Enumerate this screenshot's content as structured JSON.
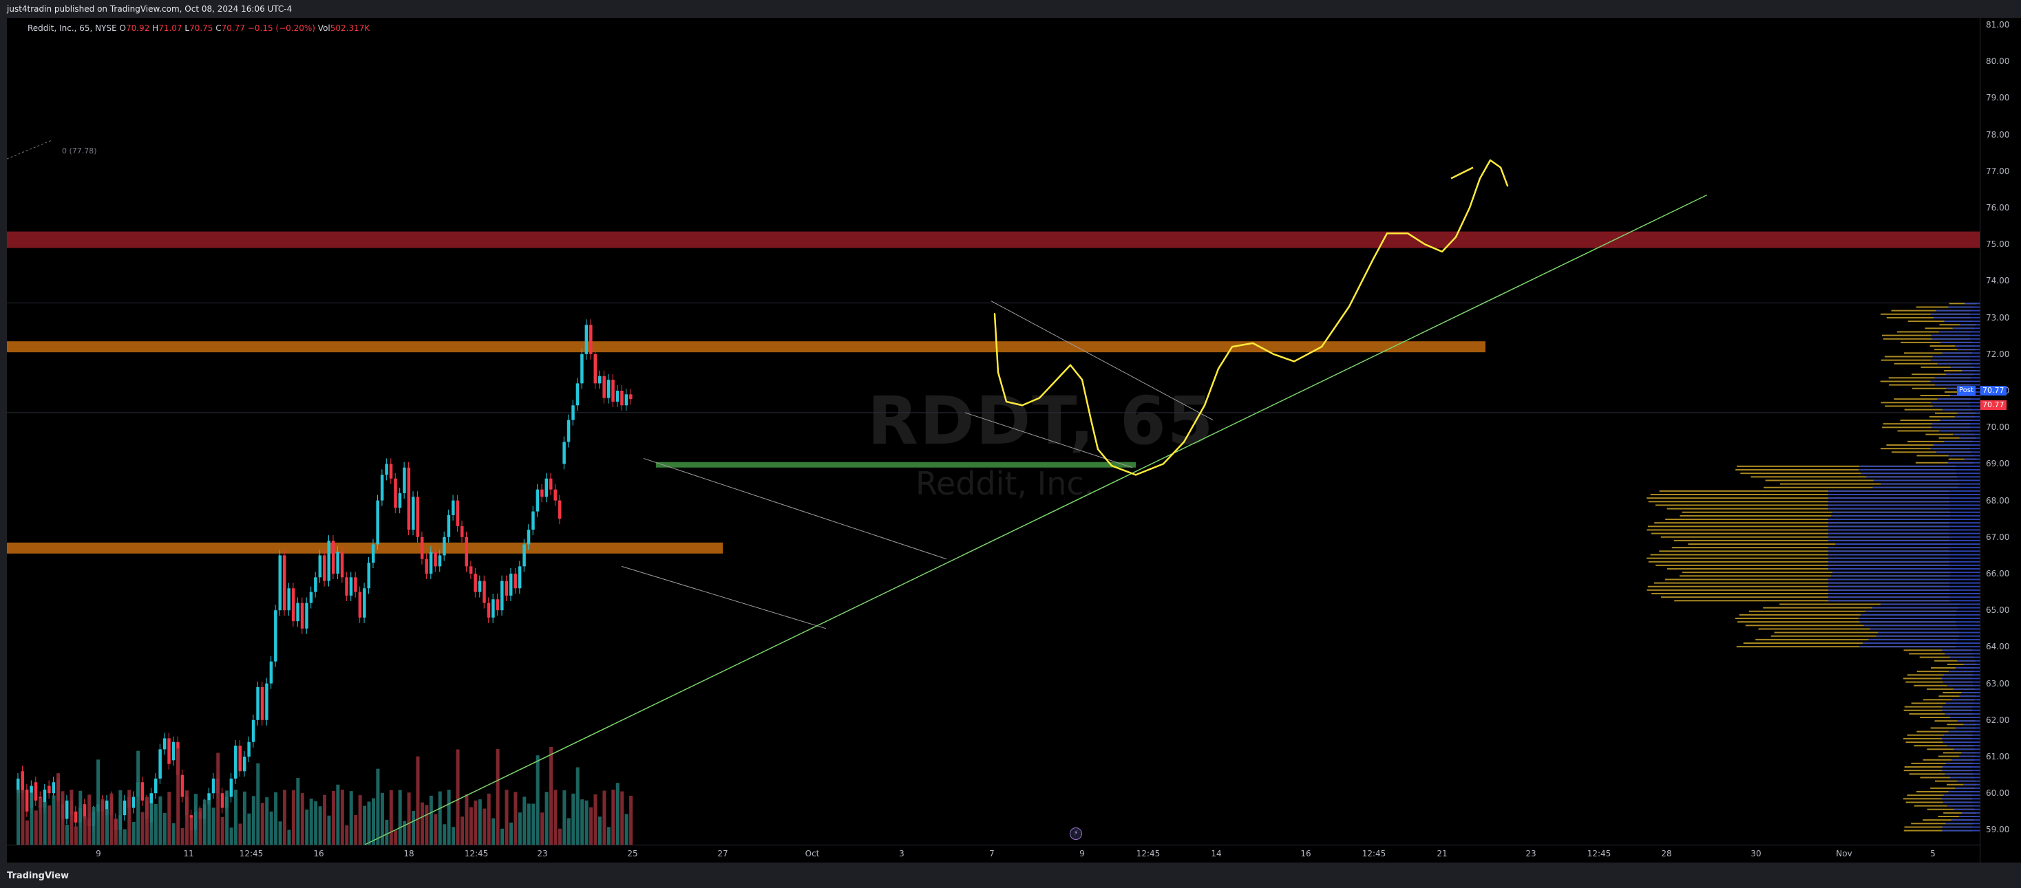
{
  "header": {
    "published": "just4tradin published on TradingView.com, Oct 08, 2024 16:06 UTC-4"
  },
  "legend": {
    "symbol": "Reddit, Inc., 65, NYSE",
    "o_label": "O",
    "o": "70.92",
    "h_label": "H",
    "h": "71.07",
    "l_label": "L",
    "l": "70.75",
    "c_label": "C",
    "c": "70.77",
    "change": "−0.15 (−0.20%)",
    "vol_label": "Vol",
    "vol": "502.317K"
  },
  "watermark": {
    "ticker": "RDDT, 65",
    "name": "Reddit, Inc."
  },
  "fib_label": "0 (77.78)",
  "price_axis": {
    "ticks": [
      "81.00",
      "80.00",
      "79.00",
      "78.00",
      "77.00",
      "76.00",
      "75.00",
      "74.00",
      "73.00",
      "72.00",
      "71.00",
      "70.00",
      "69.00",
      "68.00",
      "67.00",
      "66.00",
      "65.00",
      "64.00",
      "63.00",
      "62.00",
      "61.00",
      "60.00",
      "59.00"
    ],
    "post_label": "Post",
    "post_price": "70.77",
    "last_price": "70.77"
  },
  "time_axis": {
    "labels": [
      "9",
      "11",
      "12:45",
      "16",
      "18",
      "12:45",
      "23",
      "25",
      "27",
      "Oct",
      "3",
      "7",
      "9",
      "12:45",
      "14",
      "16",
      "12:45",
      "21",
      "23",
      "12:45",
      "28",
      "30",
      "Nov",
      "5"
    ]
  },
  "footer": {
    "brand": "TradingView"
  },
  "colors": {
    "up": "#26c6da",
    "down": "#f23645",
    "vol_up": "#1f6f6a",
    "vol_down": "#8b2b33",
    "resistance_red": "#8b1a22",
    "zone_orange": "#b8650d",
    "support_green": "#3d8b3d",
    "trendline": "#7bd36b",
    "drawing_yellow": "#ffeb3b",
    "vp_blue": "#2f47b8",
    "vp_gold": "#c9a227"
  }
}
